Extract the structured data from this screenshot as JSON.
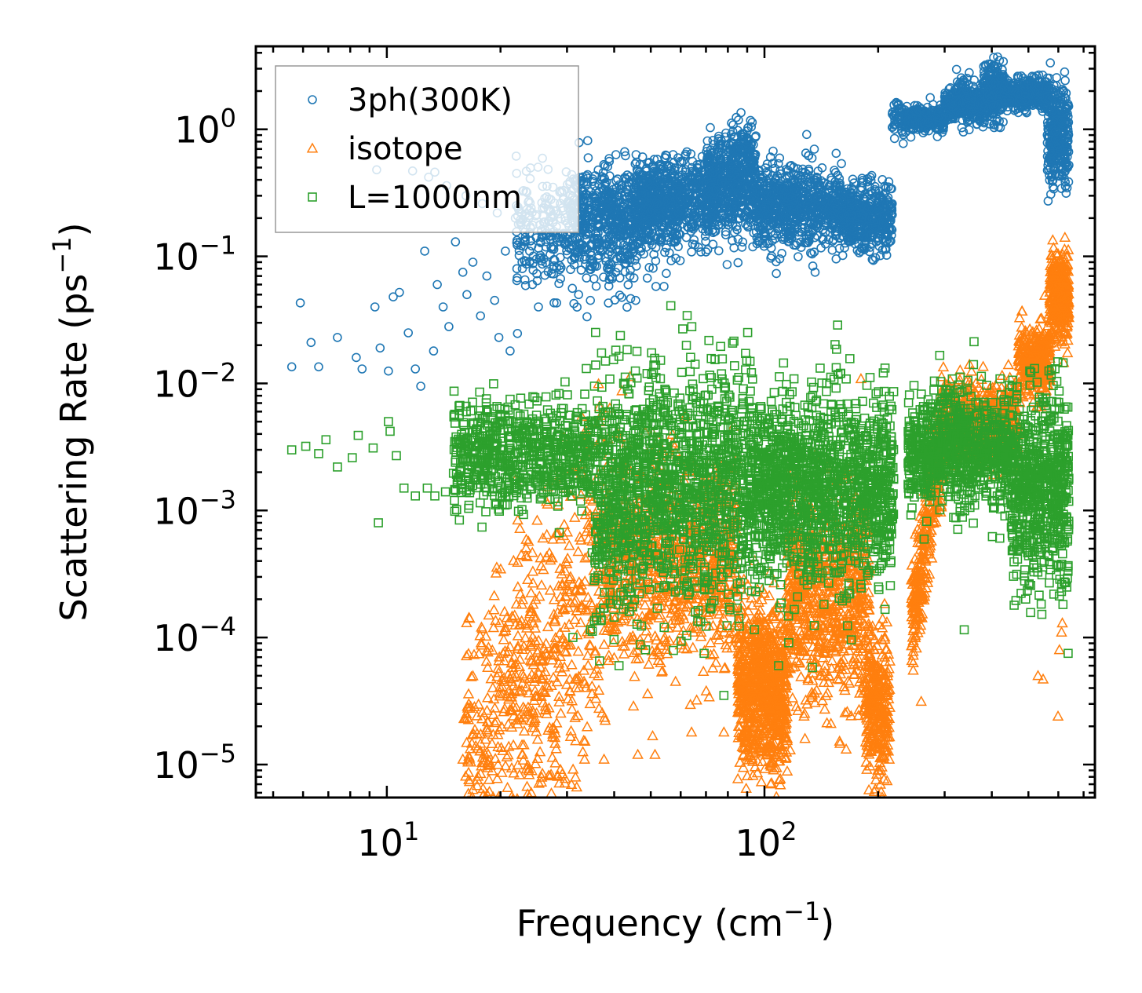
{
  "chart_data": {
    "type": "scatter",
    "xscale": "log",
    "yscale": "log",
    "xlim": [
      4.5,
      750
    ],
    "ylim": [
      5.5e-06,
      4.5
    ],
    "xlabel": "Frequency",
    "xlabel_unit": "(cm",
    "xlabel_exp": "−1",
    "xlabel_close": ")",
    "ylabel": "Scattering Rate",
    "ylabel_unit": "(ps",
    "ylabel_exp": "−1",
    "ylabel_close": ")",
    "xticks": [
      {
        "value": 10,
        "base": "10",
        "exp": "1"
      },
      {
        "value": 100,
        "base": "10",
        "exp": "2"
      }
    ],
    "yticks": [
      {
        "value": 1,
        "base": "10",
        "exp": "0"
      },
      {
        "value": 0.1,
        "base": "10",
        "exp": "−1"
      },
      {
        "value": 0.01,
        "base": "10",
        "exp": "−2"
      },
      {
        "value": 0.001,
        "base": "10",
        "exp": "−3"
      },
      {
        "value": 0.0001,
        "base": "10",
        "exp": "−4"
      },
      {
        "value": 1e-05,
        "base": "10",
        "exp": "−5"
      }
    ],
    "legend_position": "top-left",
    "series": [
      {
        "name": "3ph(300K)",
        "marker": "circle",
        "color": "#1f77b4",
        "points": [
          [
            5.6,
            0.0135
          ],
          [
            5.9,
            0.043
          ],
          [
            6.3,
            0.021
          ],
          [
            6.6,
            0.0135
          ],
          [
            7.4,
            0.023
          ],
          [
            8.3,
            0.016
          ],
          [
            8.6,
            0.013
          ],
          [
            9.3,
            0.04
          ],
          [
            9.6,
            0.019
          ],
          [
            10.1,
            0.0125
          ],
          [
            10.4,
            0.048
          ],
          [
            10.8,
            0.052
          ],
          [
            11.4,
            0.025
          ],
          [
            11.9,
            0.013
          ],
          [
            12.3,
            0.0095
          ],
          [
            12.6,
            0.11
          ],
          [
            13.3,
            0.018
          ],
          [
            13.6,
            0.06
          ],
          [
            14.1,
            0.04
          ],
          [
            14.6,
            0.028
          ],
          [
            15.2,
            0.13
          ],
          [
            15.9,
            0.075
          ],
          [
            16.3,
            0.05
          ],
          [
            16.9,
            0.09
          ],
          [
            17.7,
            0.034
          ],
          [
            18.4,
            0.07
          ],
          [
            19.3,
            0.045
          ],
          [
            19.8,
            0.023
          ],
          [
            20.6,
            0.11
          ],
          [
            21.2,
            0.018
          ],
          [
            22.1,
            0.08
          ],
          [
            23.2,
            0.13
          ],
          [
            24.3,
            0.06
          ],
          [
            25.2,
            0.04
          ],
          [
            26.3,
            0.16
          ],
          [
            11.7,
            0.47
          ],
          [
            12.9,
            0.42
          ],
          [
            14.4,
            0.36
          ],
          [
            16.2,
            0.3
          ],
          [
            17.9,
            0.26
          ],
          [
            19.6,
            0.22
          ],
          [
            21.9,
            0.2
          ],
          [
            24.1,
            0.24
          ],
          [
            27.2,
            0.28
          ],
          [
            29.4,
            0.33
          ],
          [
            31.6,
            0.4
          ],
          [
            32.2,
            0.05
          ],
          [
            34.6,
            0.045
          ],
          [
            38.4,
            0.08
          ],
          [
            45.6,
            0.045
          ],
          [
            51.6,
            0.058
          ],
          [
            54.2,
            0.058
          ],
          [
            9.4,
            0.48
          ],
          [
            13.4,
            0.46
          ],
          [
            33.2,
            0.38
          ]
        ],
        "bands": [
          {
            "x0": 22,
            "x1": 45,
            "y": 0.15,
            "spread": 0.5,
            "n": 420
          },
          {
            "x0": 30,
            "x1": 60,
            "y": 0.22,
            "spread": 0.4,
            "n": 520
          },
          {
            "x0": 45,
            "x1": 75,
            "y": 0.28,
            "spread": 0.35,
            "n": 560
          },
          {
            "x0": 70,
            "x1": 95,
            "y": 0.35,
            "spread": 0.45,
            "n": 520
          },
          {
            "x0": 80,
            "x1": 92,
            "y": 0.6,
            "spread": 0.25,
            "n": 90
          },
          {
            "x0": 95,
            "x1": 160,
            "y": 0.25,
            "spread": 0.35,
            "n": 760
          },
          {
            "x0": 160,
            "x1": 218,
            "y": 0.2,
            "spread": 0.3,
            "n": 460
          },
          {
            "x0": 218,
            "x1": 235,
            "y": 1.25,
            "spread": 0.15,
            "n": 40
          },
          {
            "x0": 235,
            "x1": 300,
            "y": 1.2,
            "spread": 0.1,
            "n": 300
          },
          {
            "x0": 300,
            "x1": 380,
            "y": 1.6,
            "spread": 0.18,
            "n": 360
          },
          {
            "x0": 380,
            "x1": 430,
            "y": 1.9,
            "spread": 0.25,
            "n": 260
          },
          {
            "x0": 430,
            "x1": 560,
            "y": 1.9,
            "spread": 0.12,
            "n": 440
          },
          {
            "x0": 560,
            "x1": 640,
            "y": 0.9,
            "spread": 0.45,
            "n": 320
          }
        ]
      },
      {
        "name": "isotope",
        "marker": "triangle",
        "color": "#ff7f0e",
        "points": [
          [
            15.9,
            1.1e-05
          ],
          [
            17.2,
            1.4e-05
          ],
          [
            18.5,
            1.8e-05
          ],
          [
            20.4,
            2.6e-05
          ],
          [
            22.8,
            1.2e-05
          ],
          [
            24.6,
            4.5e-05
          ],
          [
            27.8,
            9e-05
          ],
          [
            29.6,
            0.00012
          ],
          [
            33.4,
            1.1e-05
          ],
          [
            37.6,
            1.1e-05
          ],
          [
            46.2,
            1.2e-05
          ],
          [
            51.3,
            1.2e-05
          ],
          [
            64.1,
            1.8e-05
          ],
          [
            71.4,
            3.4e-05
          ],
          [
            78.1,
            1.8e-05
          ],
          [
            117,
            1.3e-05
          ],
          [
            128,
            1.6e-05
          ],
          [
            150,
            2.1e-05
          ],
          [
            178,
            2.7e-05
          ],
          [
            214,
            1.1e-05
          ],
          [
            530,
            5e-05
          ],
          [
            547,
            4.7e-05
          ],
          [
            599,
            2.4e-05
          ],
          [
            612,
            0.00011
          ],
          [
            615,
            0.00013
          ],
          [
            604,
            8e-05
          ]
        ],
        "bands": [
          {
            "x0": 16,
            "x1": 38,
            "y": 5e-05,
            "spread": 1.4,
            "n": 700,
            "trend": "rising"
          },
          {
            "x0": 38,
            "x1": 85,
            "y": 0.0004,
            "spread": 0.9,
            "n": 900
          },
          {
            "x0": 85,
            "x1": 115,
            "y": 4e-05,
            "spread": 0.7,
            "n": 850
          },
          {
            "x0": 115,
            "x1": 190,
            "y": 0.0002,
            "spread": 0.9,
            "n": 800
          },
          {
            "x0": 185,
            "x1": 215,
            "y": 3e-05,
            "spread": 0.6,
            "n": 300
          },
          {
            "x0": 245,
            "x1": 300,
            "y": 0.0008,
            "spread": 0.5,
            "n": 350,
            "trend": "rising"
          },
          {
            "x0": 300,
            "x1": 470,
            "y": 0.005,
            "spread": 0.35,
            "n": 500
          },
          {
            "x0": 470,
            "x1": 570,
            "y": 0.015,
            "spread": 0.3,
            "n": 350
          },
          {
            "x0": 570,
            "x1": 640,
            "y": 0.05,
            "spread": 0.4,
            "n": 300
          }
        ]
      },
      {
        "name": "L=1000nm",
        "marker": "square",
        "color": "#2ca02c",
        "points": [
          [
            5.6,
            0.003
          ],
          [
            6.1,
            0.0032
          ],
          [
            6.6,
            0.0028
          ],
          [
            6.9,
            0.0036
          ],
          [
            7.4,
            0.0022
          ],
          [
            8.1,
            0.0026
          ],
          [
            8.4,
            0.0039
          ],
          [
            9.2,
            0.0031
          ],
          [
            9.5,
            0.0008
          ],
          [
            10.2,
            0.0042
          ],
          [
            10.6,
            0.0027
          ],
          [
            11.1,
            0.0015
          ],
          [
            11.9,
            0.0013
          ],
          [
            12.8,
            0.0015
          ],
          [
            13.4,
            0.0013
          ],
          [
            14.3,
            0.0014
          ],
          [
            15.1,
            0.0012
          ],
          [
            17.6,
            0.0021
          ],
          [
            19.2,
            0.0063
          ],
          [
            21.2,
            0.0075
          ],
          [
            31.1,
            0.0001
          ],
          [
            34.6,
            0.000115
          ],
          [
            41.2,
            6e-05
          ],
          [
            48.4,
            8e-05
          ],
          [
            69.2,
            7.5e-05
          ],
          [
            78.1,
            3.5e-05
          ],
          [
            109,
            6e-05
          ],
          [
            134,
            5.8e-05
          ],
          [
            338,
            0.000115
          ],
          [
            637,
            7.5e-05
          ],
          [
            10.1,
            0.005
          ]
        ],
        "bands": [
          {
            "x0": 15,
            "x1": 35,
            "y": 0.0028,
            "spread": 0.45,
            "n": 700
          },
          {
            "x0": 35,
            "x1": 95,
            "y": 0.0015,
            "spread": 1.0,
            "n": 1500
          },
          {
            "x0": 95,
            "x1": 220,
            "y": 0.0015,
            "spread": 0.8,
            "n": 1400
          },
          {
            "x0": 240,
            "x1": 450,
            "y": 0.003,
            "spread": 0.5,
            "n": 900
          },
          {
            "x0": 450,
            "x1": 640,
            "y": 0.0015,
            "spread": 0.8,
            "n": 700
          }
        ]
      }
    ]
  }
}
